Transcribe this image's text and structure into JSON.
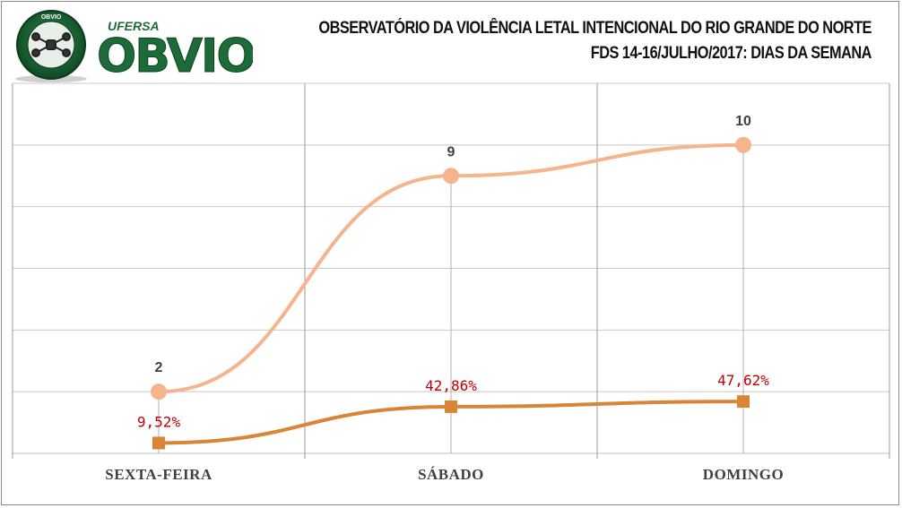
{
  "header": {
    "title_line1": "OBSERVATÓRIO DA VIOLÊNCIA LETAL INTENCIONAL DO RIO GRANDE DO NORTE",
    "title_line2": "FDS 14-16/JULHO/2017:  DIAS DA SEMANA"
  },
  "logo": {
    "brand": "OBVIO",
    "sub": "UFERSA",
    "seal_top": "OBVIO",
    "seal_ring": "OBSERVATÓRIO DA VIOLÊNCIA LETAL INTENCIONAL"
  },
  "colors": {
    "count_line": "#f4b48e",
    "percent_line": "#d98437",
    "percent_label": "#c00000",
    "count_label": "#404040",
    "grid": "#c8c8c8",
    "logo_green": "#1e6b3a"
  },
  "chart_data": {
    "type": "line",
    "categories": [
      "SEXTA-FEIRA",
      "SÁBADO",
      "DOMINGO"
    ],
    "series": [
      {
        "values": [
          2,
          9,
          10
        ],
        "labels": [
          "2",
          "9",
          "10"
        ]
      },
      {
        "values": [
          9.52,
          42.86,
          47.62
        ],
        "labels": [
          "9,52%",
          "42,86%",
          "47,62%"
        ]
      }
    ],
    "grid": true,
    "smooth": true
  }
}
